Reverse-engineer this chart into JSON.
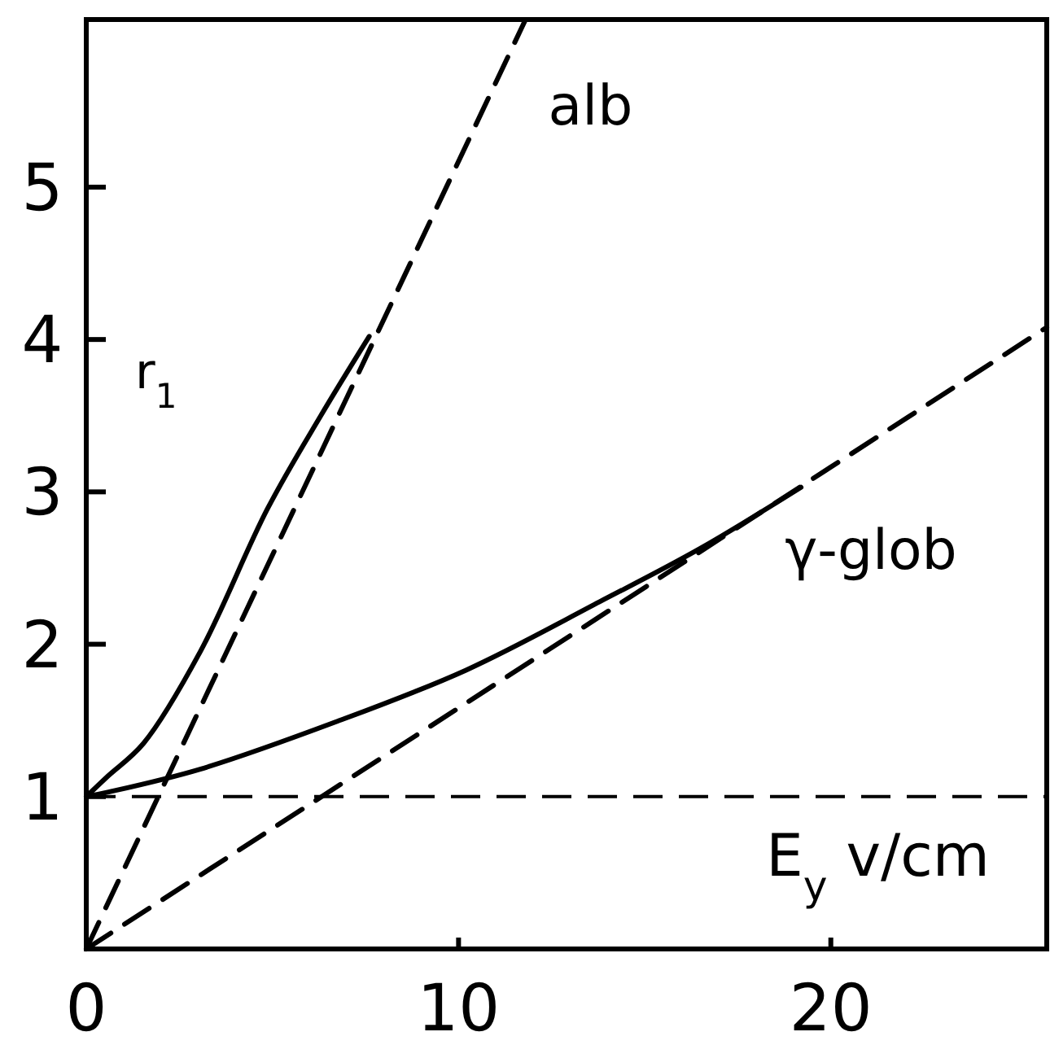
{
  "chart_data": {
    "type": "line",
    "xlabel": "E$_{y}$  v/cm",
    "ylabel": "r$_{1}$",
    "xlim": [
      0,
      25.8
    ],
    "ylim": [
      0,
      6.1
    ],
    "xticks": [
      0,
      10,
      20
    ],
    "yticks": [
      1,
      2,
      3,
      4,
      5
    ],
    "grid": false,
    "marker": "none",
    "series": [
      {
        "name": "alb",
        "color": "#000000",
        "line_style": "solid",
        "x": [
          0,
          0.56,
          1.54,
          3.06,
          4.87,
          6.3,
          7.6
        ],
        "values": [
          1,
          1.13,
          1.35,
          1.95,
          2.89,
          3.5,
          4.02
        ]
      },
      {
        "color": "#000000",
        "line_style": "dashed",
        "x": [
          0,
          11.8
        ],
        "values": [
          0,
          6.1
        ]
      },
      {
        "name": "γ-glob",
        "color": "#000000",
        "line_style": "solid",
        "x": [
          0,
          0.6,
          3.06,
          6.7,
          10.2,
          13.8,
          16.5,
          19.2
        ],
        "values": [
          1,
          1.03,
          1.18,
          1.49,
          1.83,
          2.28,
          2.63,
          3.03
        ]
      },
      {
        "color": "#000000",
        "line_style": "dashed",
        "x": [
          0,
          25.8
        ],
        "values": [
          0,
          4.08
        ]
      }
    ],
    "ref_lines": [
      {
        "axis": "y",
        "value": 1,
        "color": "#000000",
        "line_style": "dashed"
      }
    ]
  }
}
